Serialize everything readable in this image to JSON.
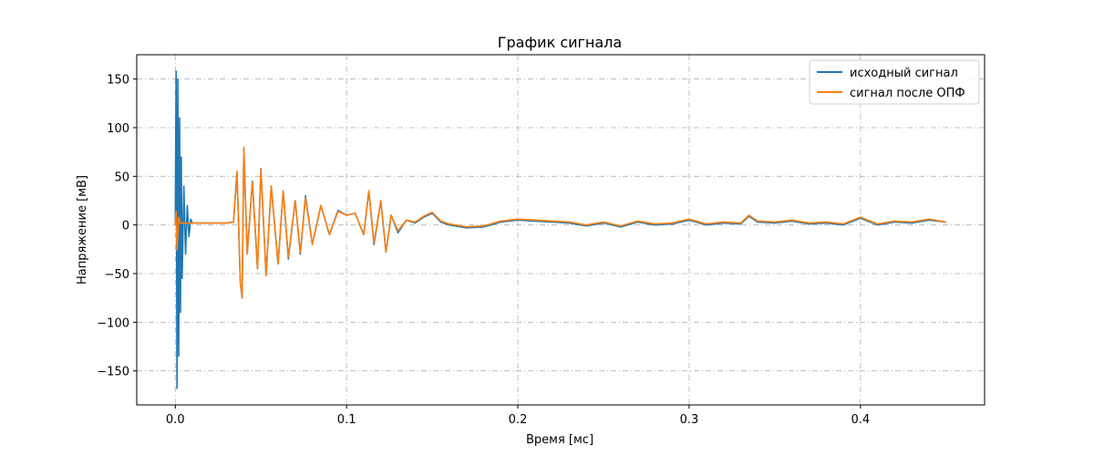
{
  "chart_data": {
    "type": "line",
    "title": "График сигнала",
    "xlabel": "Время [мс]",
    "ylabel": "Напряжение [мВ]",
    "xlim": [
      -0.0225,
      0.4725
    ],
    "ylim": [
      -185,
      175
    ],
    "xticks": [
      0.0,
      0.1,
      0.2,
      0.3,
      0.4
    ],
    "xtick_labels": [
      "0.0",
      "0.1",
      "0.2",
      "0.3",
      "0.4"
    ],
    "yticks": [
      -150,
      -100,
      -50,
      0,
      50,
      100,
      150
    ],
    "ytick_labels": [
      "−150",
      "−100",
      "−50",
      "0",
      "50",
      "100",
      "150"
    ],
    "grid": true,
    "legend_position": "top-right",
    "series": [
      {
        "name": "исходный сигнал",
        "color": "#1f77b4",
        "x": [
          0.0,
          0.0005,
          0.001,
          0.0015,
          0.002,
          0.0025,
          0.003,
          0.0035,
          0.004,
          0.005,
          0.006,
          0.007,
          0.008,
          0.009,
          0.01,
          0.012,
          0.02,
          0.03,
          0.034,
          0.036,
          0.038,
          0.039,
          0.04,
          0.042,
          0.045,
          0.048,
          0.05,
          0.053,
          0.056,
          0.06,
          0.063,
          0.066,
          0.07,
          0.073,
          0.076,
          0.08,
          0.085,
          0.09,
          0.095,
          0.1,
          0.105,
          0.11,
          0.113,
          0.116,
          0.12,
          0.123,
          0.126,
          0.13,
          0.135,
          0.14,
          0.145,
          0.15,
          0.155,
          0.16,
          0.17,
          0.18,
          0.19,
          0.2,
          0.21,
          0.22,
          0.23,
          0.24,
          0.25,
          0.26,
          0.27,
          0.28,
          0.29,
          0.3,
          0.31,
          0.32,
          0.33,
          0.335,
          0.34,
          0.35,
          0.36,
          0.37,
          0.38,
          0.39,
          0.4,
          0.41,
          0.42,
          0.43,
          0.44,
          0.45
        ],
        "y": [
          0,
          158,
          -168,
          150,
          -135,
          110,
          -90,
          70,
          -55,
          40,
          -30,
          20,
          -12,
          6,
          2,
          2,
          2,
          2,
          3,
          55,
          -60,
          -75,
          78,
          -30,
          45,
          -45,
          58,
          -52,
          40,
          -40,
          35,
          -35,
          25,
          -30,
          30,
          -20,
          20,
          -10,
          15,
          10,
          12,
          -10,
          35,
          -20,
          25,
          -28,
          10,
          -8,
          5,
          2,
          8,
          12,
          3,
          0,
          -3,
          -2,
          3,
          5,
          4,
          3,
          2,
          -1,
          2,
          -2,
          3,
          0,
          1,
          5,
          0,
          2,
          1,
          9,
          3,
          2,
          4,
          1,
          2,
          0,
          7,
          0,
          3,
          2,
          5,
          3
        ]
      },
      {
        "name": "сигнал после ОПФ",
        "color": "#ff7f0e",
        "x": [
          0.0,
          0.0005,
          0.001,
          0.002,
          0.003,
          0.005,
          0.01,
          0.02,
          0.03,
          0.034,
          0.036,
          0.038,
          0.039,
          0.04,
          0.042,
          0.045,
          0.048,
          0.05,
          0.053,
          0.056,
          0.06,
          0.063,
          0.066,
          0.07,
          0.073,
          0.076,
          0.08,
          0.085,
          0.09,
          0.095,
          0.1,
          0.105,
          0.11,
          0.113,
          0.116,
          0.12,
          0.123,
          0.126,
          0.13,
          0.135,
          0.14,
          0.145,
          0.15,
          0.155,
          0.16,
          0.17,
          0.18,
          0.19,
          0.2,
          0.21,
          0.22,
          0.23,
          0.24,
          0.25,
          0.26,
          0.27,
          0.28,
          0.29,
          0.3,
          0.31,
          0.32,
          0.33,
          0.335,
          0.34,
          0.35,
          0.36,
          0.37,
          0.38,
          0.39,
          0.4,
          0.41,
          0.42,
          0.43,
          0.44,
          0.45
        ],
        "y": [
          0,
          14,
          -26,
          8,
          2,
          2,
          2,
          2,
          2,
          3,
          55,
          -60,
          -75,
          80,
          -30,
          44,
          -45,
          57,
          -52,
          40,
          -40,
          35,
          -33,
          25,
          -28,
          28,
          -20,
          20,
          -10,
          14,
          10,
          12,
          -10,
          35,
          -18,
          25,
          -28,
          10,
          -6,
          5,
          3,
          9,
          13,
          4,
          1,
          -2,
          -1,
          4,
          6,
          5,
          4,
          3,
          0,
          3,
          -1,
          4,
          1,
          2,
          6,
          1,
          3,
          2,
          10,
          4,
          3,
          5,
          2,
          3,
          1,
          8,
          1,
          4,
          3,
          6,
          3
        ]
      }
    ]
  }
}
